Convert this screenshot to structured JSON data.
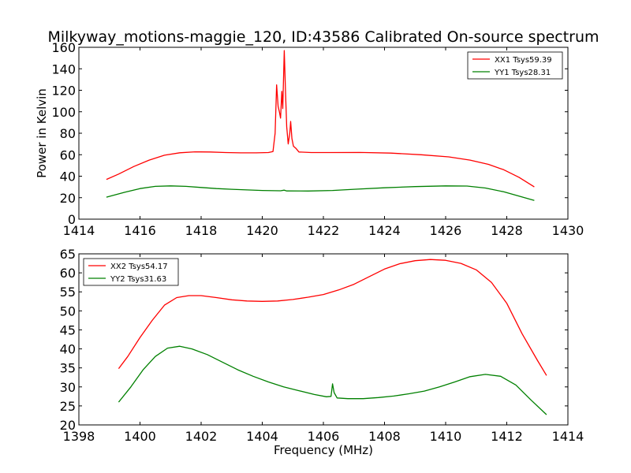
{
  "figure": {
    "title": "Milkyway_motions-maggie_120, ID:43586 Calibrated On-source spectrum",
    "xlabel_bottom": "Frequency (MHz)"
  },
  "chart_data": [
    {
      "type": "line",
      "xlabel": "",
      "ylabel": "Power in Kelvin",
      "xlim": [
        1414,
        1430
      ],
      "ylim": [
        0,
        160
      ],
      "xticks": [
        1414,
        1416,
        1418,
        1420,
        1422,
        1424,
        1426,
        1428,
        1430
      ],
      "yticks": [
        0,
        20,
        40,
        60,
        80,
        100,
        120,
        140,
        160
      ],
      "legend_position": "upper right",
      "series": [
        {
          "name": "XX1 Tsys59.39",
          "color": "#ff0000",
          "points": [
            [
              1414.9,
              37
            ],
            [
              1415.3,
              42
            ],
            [
              1415.8,
              49
            ],
            [
              1416.3,
              55
            ],
            [
              1416.8,
              59.5
            ],
            [
              1417.3,
              61.8
            ],
            [
              1417.8,
              62.7
            ],
            [
              1418.3,
              62.5
            ],
            [
              1418.8,
              62
            ],
            [
              1419.3,
              61.7
            ],
            [
              1419.8,
              61.7
            ],
            [
              1420.2,
              62
            ],
            [
              1420.35,
              63
            ],
            [
              1420.42,
              80
            ],
            [
              1420.47,
              125
            ],
            [
              1420.52,
              105
            ],
            [
              1420.56,
              100
            ],
            [
              1420.6,
              94
            ],
            [
              1420.64,
              119
            ],
            [
              1420.67,
              103
            ],
            [
              1420.72,
              157
            ],
            [
              1420.76,
              120
            ],
            [
              1420.8,
              86
            ],
            [
              1420.85,
              70
            ],
            [
              1420.9,
              80
            ],
            [
              1420.93,
              91
            ],
            [
              1420.97,
              75
            ],
            [
              1421.02,
              68
            ],
            [
              1421.1,
              66
            ],
            [
              1421.2,
              62.5
            ],
            [
              1421.6,
              62
            ],
            [
              1422.2,
              62
            ],
            [
              1423.2,
              62.1
            ],
            [
              1424.2,
              61.5
            ],
            [
              1425.2,
              60
            ],
            [
              1426.1,
              58
            ],
            [
              1426.8,
              55
            ],
            [
              1427.4,
              51
            ],
            [
              1427.9,
              46
            ],
            [
              1428.4,
              39
            ],
            [
              1428.9,
              30
            ]
          ]
        },
        {
          "name": "YY1 Tsys28.31",
          "color": "#008000",
          "points": [
            [
              1414.9,
              20.5
            ],
            [
              1415.5,
              25
            ],
            [
              1416.0,
              28.5
            ],
            [
              1416.5,
              30.5
            ],
            [
              1417.0,
              31
            ],
            [
              1417.5,
              30.5
            ],
            [
              1418.0,
              29.5
            ],
            [
              1418.5,
              28.5
            ],
            [
              1419.0,
              27.8
            ],
            [
              1419.5,
              27.2
            ],
            [
              1420.0,
              26.7
            ],
            [
              1420.6,
              26.4
            ],
            [
              1420.72,
              27
            ],
            [
              1420.8,
              26.3
            ],
            [
              1421.5,
              26.2
            ],
            [
              1422.3,
              26.7
            ],
            [
              1423.0,
              27.8
            ],
            [
              1424.0,
              29.2
            ],
            [
              1425.0,
              30.3
            ],
            [
              1426.0,
              31
            ],
            [
              1426.7,
              30.8
            ],
            [
              1427.3,
              29
            ],
            [
              1427.9,
              25.5
            ],
            [
              1428.4,
              21.5
            ],
            [
              1428.9,
              17.5
            ]
          ]
        }
      ]
    },
    {
      "type": "line",
      "xlabel": "Frequency (MHz)",
      "ylabel": "",
      "xlim": [
        1398,
        1414
      ],
      "ylim": [
        20,
        65
      ],
      "xticks": [
        1398,
        1400,
        1402,
        1404,
        1406,
        1408,
        1410,
        1412,
        1414
      ],
      "yticks": [
        20,
        25,
        30,
        35,
        40,
        45,
        50,
        55,
        60,
        65
      ],
      "legend_position": "upper left",
      "series": [
        {
          "name": "XX2 Tsys54.17",
          "color": "#ff0000",
          "points": [
            [
              1399.3,
              34.8
            ],
            [
              1399.6,
              38
            ],
            [
              1400.0,
              43
            ],
            [
              1400.4,
              47.5
            ],
            [
              1400.8,
              51.5
            ],
            [
              1401.2,
              53.5
            ],
            [
              1401.6,
              54
            ],
            [
              1402.0,
              54
            ],
            [
              1402.5,
              53.5
            ],
            [
              1403.0,
              52.9
            ],
            [
              1403.5,
              52.6
            ],
            [
              1404.0,
              52.5
            ],
            [
              1404.5,
              52.6
            ],
            [
              1405.0,
              53
            ],
            [
              1405.5,
              53.6
            ],
            [
              1406.0,
              54.3
            ],
            [
              1406.5,
              55.5
            ],
            [
              1407.0,
              57
            ],
            [
              1407.5,
              59
            ],
            [
              1408.0,
              61
            ],
            [
              1408.5,
              62.4
            ],
            [
              1409.0,
              63.2
            ],
            [
              1409.5,
              63.5
            ],
            [
              1410.0,
              63.3
            ],
            [
              1410.5,
              62.5
            ],
            [
              1411.0,
              60.8
            ],
            [
              1411.5,
              57.5
            ],
            [
              1412.0,
              52
            ],
            [
              1412.5,
              44
            ],
            [
              1413.0,
              37
            ],
            [
              1413.3,
              33
            ]
          ]
        },
        {
          "name": "YY2 Tsys31.63",
          "color": "#008000",
          "points": [
            [
              1399.3,
              26
            ],
            [
              1399.7,
              30
            ],
            [
              1400.1,
              34.5
            ],
            [
              1400.5,
              38
            ],
            [
              1400.9,
              40.2
            ],
            [
              1401.3,
              40.7
            ],
            [
              1401.7,
              40
            ],
            [
              1402.2,
              38.5
            ],
            [
              1402.7,
              36.5
            ],
            [
              1403.2,
              34.5
            ],
            [
              1403.7,
              32.8
            ],
            [
              1404.2,
              31.3
            ],
            [
              1404.7,
              30
            ],
            [
              1405.2,
              29
            ],
            [
              1405.7,
              28
            ],
            [
              1406.1,
              27.4
            ],
            [
              1406.25,
              27.5
            ],
            [
              1406.3,
              30.8
            ],
            [
              1406.35,
              28.5
            ],
            [
              1406.45,
              27.1
            ],
            [
              1406.8,
              26.9
            ],
            [
              1407.3,
              26.9
            ],
            [
              1407.8,
              27.2
            ],
            [
              1408.3,
              27.6
            ],
            [
              1408.8,
              28.2
            ],
            [
              1409.3,
              28.9
            ],
            [
              1409.8,
              30
            ],
            [
              1410.3,
              31.3
            ],
            [
              1410.8,
              32.7
            ],
            [
              1411.3,
              33.3
            ],
            [
              1411.8,
              32.8
            ],
            [
              1412.3,
              30.5
            ],
            [
              1412.8,
              26.5
            ],
            [
              1413.3,
              22.7
            ]
          ]
        }
      ]
    }
  ]
}
